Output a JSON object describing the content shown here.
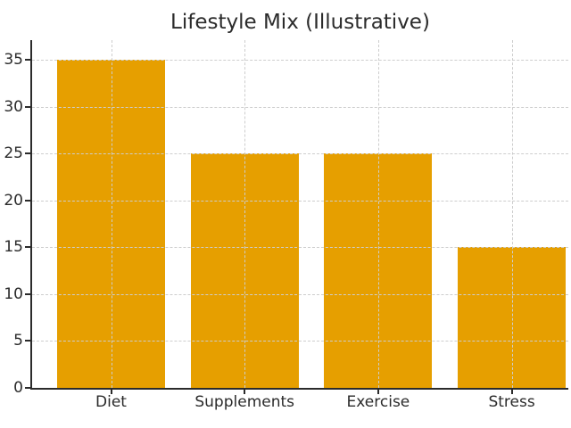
{
  "chart_data": {
    "type": "bar",
    "title": "Lifestyle Mix (Illustrative)",
    "categories": [
      "Diet",
      "Supplements",
      "Exercise",
      "Stress"
    ],
    "values": [
      35,
      25,
      25,
      15
    ],
    "xlabel": "",
    "ylabel": "",
    "ylim": [
      0,
      37.1
    ],
    "yticks": [
      0,
      5,
      10,
      15,
      20,
      25,
      30,
      35
    ],
    "grid": "both-axes, dashed, drawn above bars",
    "legend_position": "none",
    "colors": {
      "bar": "#E69F00",
      "background": "#FFFFFF",
      "text": "#2B2B2B",
      "grid": "#CDCDCD",
      "spine": "#2B2B2B"
    }
  }
}
